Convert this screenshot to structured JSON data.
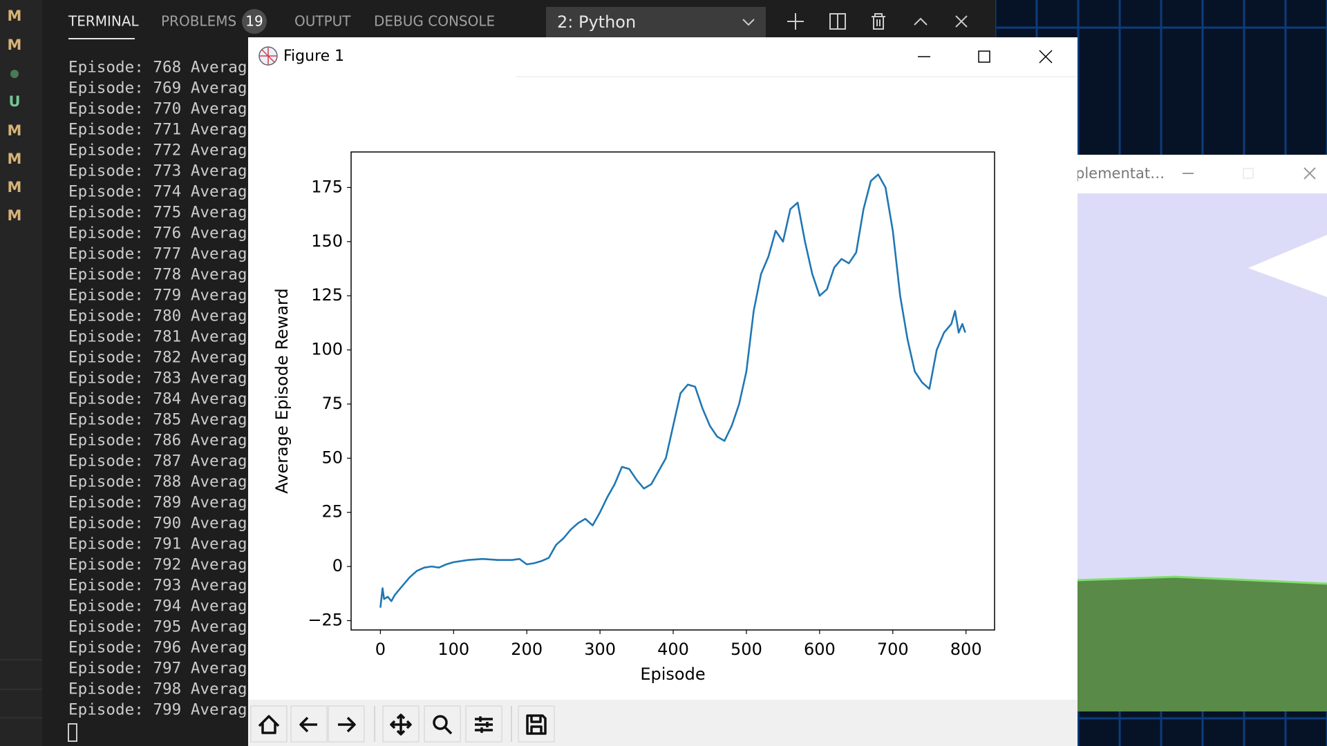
{
  "sidebar": {
    "items": [
      "M",
      "M",
      "U",
      "M",
      "M",
      "M",
      "M"
    ]
  },
  "panel": {
    "tabs": [
      "TERMINAL",
      "PROBLEMS",
      "OUTPUT",
      "DEBUG CONSOLE"
    ],
    "problems_badge": "19",
    "terminal_select": "2: Python"
  },
  "terminal": {
    "lines": [
      "Episode: 768 Averag",
      "Episode: 769 Averag",
      "Episode: 770 Averag",
      "Episode: 771 Averag",
      "Episode: 772 Averag",
      "Episode: 773 Averag",
      "Episode: 774 Averag",
      "Episode: 775 Averag",
      "Episode: 776 Averag",
      "Episode: 777 Averag",
      "Episode: 778 Averag",
      "Episode: 779 Averag",
      "Episode: 780 Averag",
      "Episode: 781 Averag",
      "Episode: 782 Averag",
      "Episode: 783 Averag",
      "Episode: 784 Averag",
      "Episode: 785 Averag",
      "Episode: 786 Averag",
      "Episode: 787 Averag",
      "Episode: 788 Averag",
      "Episode: 789 Averag",
      "Episode: 790 Averag",
      "Episode: 791 Averag",
      "Episode: 792 Averag",
      "Episode: 793 Averag",
      "Episode: 794 Averag",
      "Episode: 795 Averag",
      "Episode: 796 Averag",
      "Episode: 797 Averag",
      "Episode: 798 Averag",
      "Episode: 799 Averag"
    ]
  },
  "figure_window": {
    "title": "Figure 1",
    "chart_data": {
      "type": "line",
      "xlabel": "Episode",
      "ylabel": "Average Episode Reward",
      "x": [
        0,
        3,
        5,
        10,
        15,
        20,
        30,
        40,
        50,
        60,
        70,
        80,
        90,
        100,
        120,
        140,
        160,
        180,
        190,
        200,
        210,
        220,
        230,
        240,
        250,
        260,
        270,
        280,
        290,
        300,
        310,
        320,
        330,
        340,
        350,
        360,
        370,
        380,
        390,
        400,
        410,
        420,
        430,
        440,
        450,
        460,
        470,
        480,
        490,
        500,
        510,
        520,
        530,
        540,
        550,
        560,
        570,
        580,
        590,
        600,
        610,
        620,
        630,
        640,
        650,
        660,
        670,
        680,
        690,
        700,
        710,
        720,
        730,
        740,
        750,
        760,
        770,
        780,
        785,
        790,
        795,
        799
      ],
      "series": [
        {
          "color": "#1f77b4",
          "values": [
            -19,
            -10,
            -15,
            -14,
            -16,
            -13,
            -9,
            -5,
            -2,
            -0.5,
            0,
            -0.5,
            1,
            2,
            3,
            3.5,
            3,
            3,
            3.5,
            1,
            1.5,
            2.5,
            4,
            10,
            13,
            17,
            20,
            22,
            19,
            25,
            32,
            38,
            46,
            45,
            40,
            36,
            38,
            44,
            50,
            65,
            80,
            84,
            83,
            73,
            65,
            60,
            58,
            65,
            75,
            90,
            118,
            135,
            143,
            155,
            150,
            165,
            168,
            150,
            135,
            125,
            128,
            138,
            142,
            140,
            145,
            165,
            178,
            181,
            175,
            155,
            125,
            105,
            90,
            85,
            82,
            100,
            108,
            112,
            118,
            108,
            112,
            108
          ]
        }
      ],
      "xlim": [
        -40,
        839
      ],
      "ylim": [
        -29.3,
        191.4
      ],
      "xticks": [
        0,
        100,
        200,
        300,
        400,
        500,
        600,
        700,
        800
      ],
      "yticks": [
        {
          "value": -25,
          "label": "−25"
        },
        0,
        25,
        50,
        75,
        100,
        125,
        150,
        175
      ]
    }
  },
  "background_window": {
    "title": "plementat…"
  }
}
